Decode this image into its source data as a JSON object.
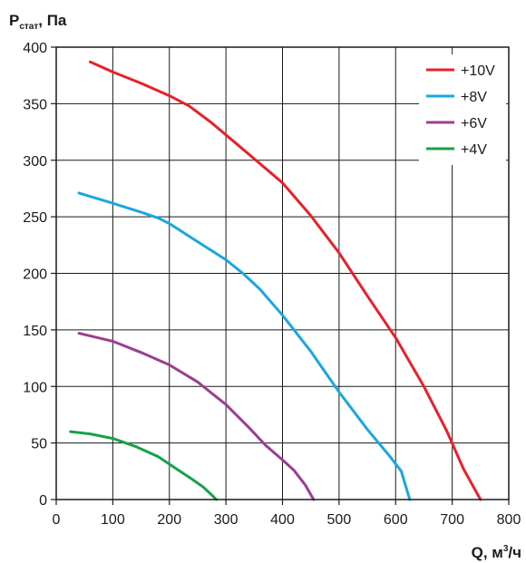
{
  "chart_data": {
    "type": "line",
    "ylabel": {
      "main": "P",
      "sub": "стат",
      "rest": ", Па"
    },
    "xlabel": {
      "main": "Q, м",
      "sup": "3",
      "rest": "/ч"
    },
    "xlim": [
      0,
      800
    ],
    "ylim": [
      0,
      400
    ],
    "xticks": [
      0,
      100,
      200,
      300,
      400,
      500,
      600,
      700,
      800
    ],
    "yticks": [
      0,
      50,
      100,
      150,
      200,
      250,
      300,
      350,
      400
    ],
    "xtick_labels": [
      "0",
      "100",
      "200",
      "300",
      "400",
      "500",
      "600",
      "700",
      "800"
    ],
    "ytick_labels": [
      "0",
      "50",
      "100",
      "150",
      "200",
      "250",
      "300",
      "350",
      "400"
    ],
    "grid": true,
    "legend_position": "top-right",
    "series": [
      {
        "name": "+10V",
        "color": "#e8202a",
        "points": [
          [
            60,
            387
          ],
          [
            100,
            378
          ],
          [
            150,
            368
          ],
          [
            200,
            357
          ],
          [
            235,
            348
          ],
          [
            275,
            333
          ],
          [
            320,
            314
          ],
          [
            360,
            297
          ],
          [
            400,
            280
          ],
          [
            450,
            251
          ],
          [
            500,
            218
          ],
          [
            550,
            180
          ],
          [
            600,
            143
          ],
          [
            650,
            100
          ],
          [
            690,
            61
          ],
          [
            720,
            27
          ],
          [
            750,
            0
          ]
        ]
      },
      {
        "name": "+8V",
        "color": "#1aa7e0",
        "points": [
          [
            40,
            271
          ],
          [
            100,
            262
          ],
          [
            150,
            254
          ],
          [
            180,
            249
          ],
          [
            200,
            244
          ],
          [
            250,
            228
          ],
          [
            300,
            212
          ],
          [
            330,
            200
          ],
          [
            360,
            186
          ],
          [
            400,
            163
          ],
          [
            450,
            131
          ],
          [
            500,
            95
          ],
          [
            550,
            62
          ],
          [
            590,
            38
          ],
          [
            610,
            25
          ],
          [
            625,
            0
          ]
        ]
      },
      {
        "name": "+6V",
        "color": "#9c3d91",
        "points": [
          [
            40,
            147
          ],
          [
            100,
            140
          ],
          [
            150,
            130
          ],
          [
            200,
            119
          ],
          [
            250,
            104
          ],
          [
            300,
            84
          ],
          [
            340,
            64
          ],
          [
            370,
            48
          ],
          [
            400,
            35
          ],
          [
            420,
            26
          ],
          [
            440,
            13
          ],
          [
            455,
            0
          ]
        ]
      },
      {
        "name": "+4V",
        "color": "#17a148",
        "points": [
          [
            25,
            60
          ],
          [
            60,
            58
          ],
          [
            100,
            54
          ],
          [
            140,
            47
          ],
          [
            180,
            38
          ],
          [
            210,
            28
          ],
          [
            240,
            18
          ],
          [
            260,
            11
          ],
          [
            275,
            4
          ],
          [
            283,
            0
          ]
        ]
      }
    ]
  }
}
